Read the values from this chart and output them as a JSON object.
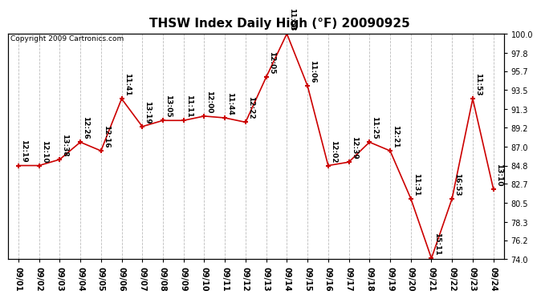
{
  "title": "THSW Index Daily High (°F) 20090925",
  "copyright": "Copyright 2009 Cartronics.com",
  "line_color": "#cc0000",
  "marker_color": "#cc0000",
  "background_color": "#ffffff",
  "grid_color": "#bbbbbb",
  "dates": [
    "09/01",
    "09/02",
    "09/03",
    "09/04",
    "09/05",
    "09/06",
    "09/07",
    "09/08",
    "09/09",
    "09/10",
    "09/11",
    "09/12",
    "09/13",
    "09/14",
    "09/15",
    "09/16",
    "09/17",
    "09/18",
    "09/19",
    "09/20",
    "09/21",
    "09/22",
    "09/23",
    "09/24"
  ],
  "values": [
    84.8,
    84.8,
    85.5,
    87.5,
    86.5,
    92.5,
    89.3,
    90.0,
    90.0,
    90.5,
    90.3,
    89.8,
    95.0,
    100.0,
    94.0,
    84.8,
    85.2,
    87.5,
    86.5,
    81.0,
    74.1,
    81.0,
    92.5,
    82.1
  ],
  "times": [
    "12:19",
    "12:10",
    "13:38",
    "12:26",
    "12:16",
    "11:41",
    "13:19",
    "13:05",
    "11:11",
    "12:00",
    "11:44",
    "12:22",
    "12:05",
    "11:53",
    "11:06",
    "12:02",
    "12:39",
    "11:25",
    "12:21",
    "11:31",
    "15:11",
    "16:53",
    "11:53",
    "13:10"
  ],
  "ylim": [
    74.0,
    100.0
  ],
  "yticks": [
    74.0,
    76.2,
    78.3,
    80.5,
    82.7,
    84.8,
    87.0,
    89.2,
    91.3,
    93.5,
    95.7,
    97.8,
    100.0
  ],
  "title_fontsize": 11,
  "label_fontsize": 6.5,
  "tick_fontsize": 7,
  "copyright_fontsize": 6.5
}
